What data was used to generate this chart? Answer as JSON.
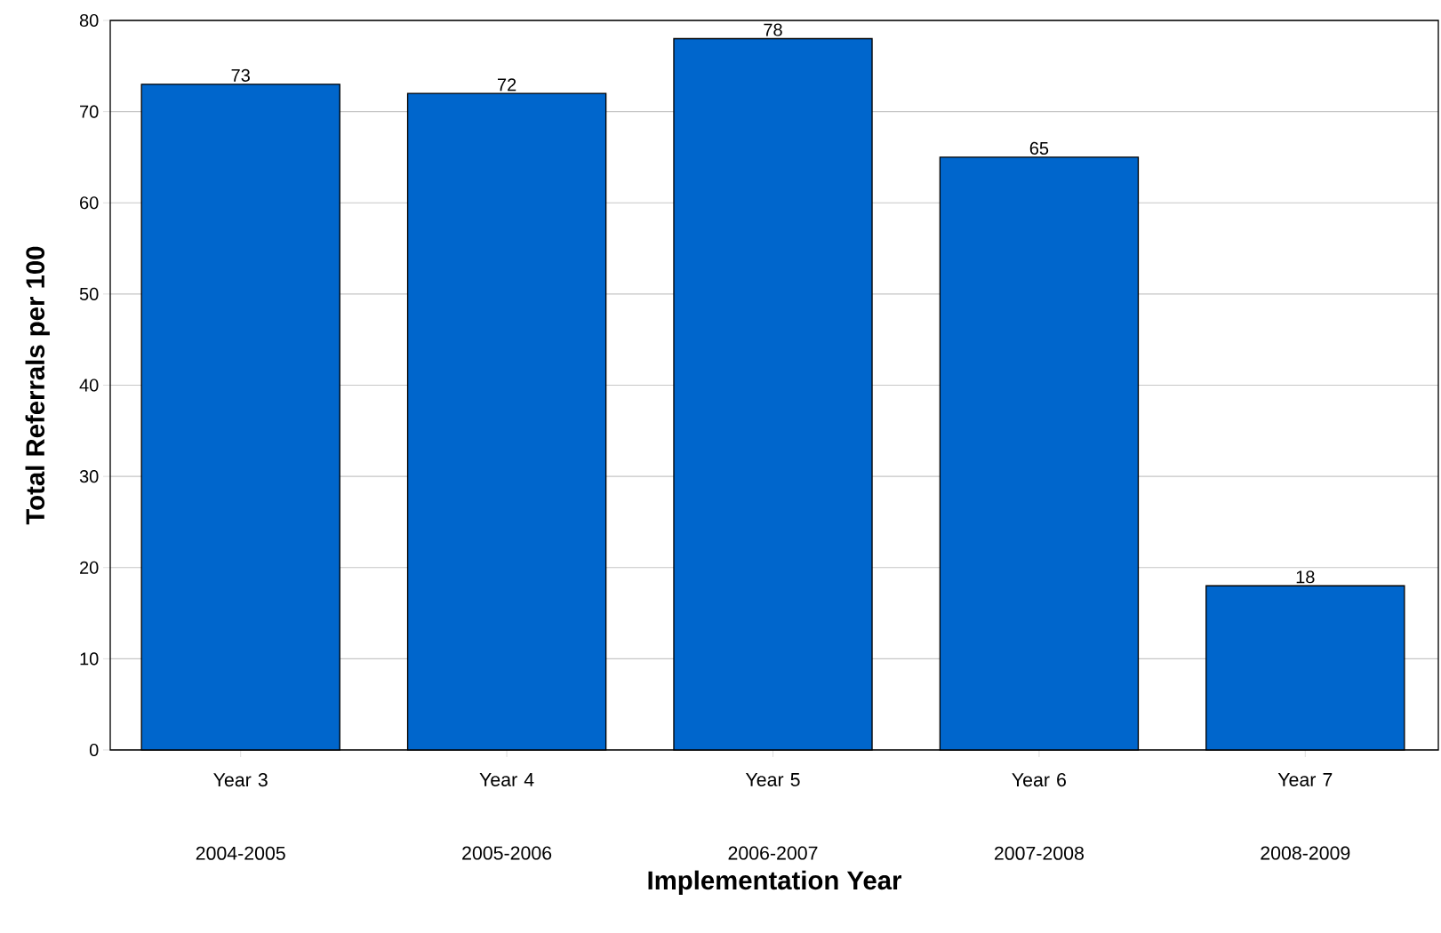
{
  "chart_data": {
    "type": "bar",
    "xlabel": "Implementation Year",
    "ylabel": "Total Referrals per 100",
    "categories": [
      "Year 3 2004-2005",
      "Year 4 2005-2006",
      "Year 5 2006-2007",
      "Year 6 2007-2008",
      "Year 7 2008-2009"
    ],
    "values": [
      73,
      72,
      78,
      65,
      18
    ],
    "color": "#0066cc",
    "ylim": [
      0,
      80
    ],
    "yticks": [
      0,
      10,
      20,
      30,
      40,
      50,
      60,
      70,
      80
    ],
    "grid": "y",
    "data_labels": true
  }
}
